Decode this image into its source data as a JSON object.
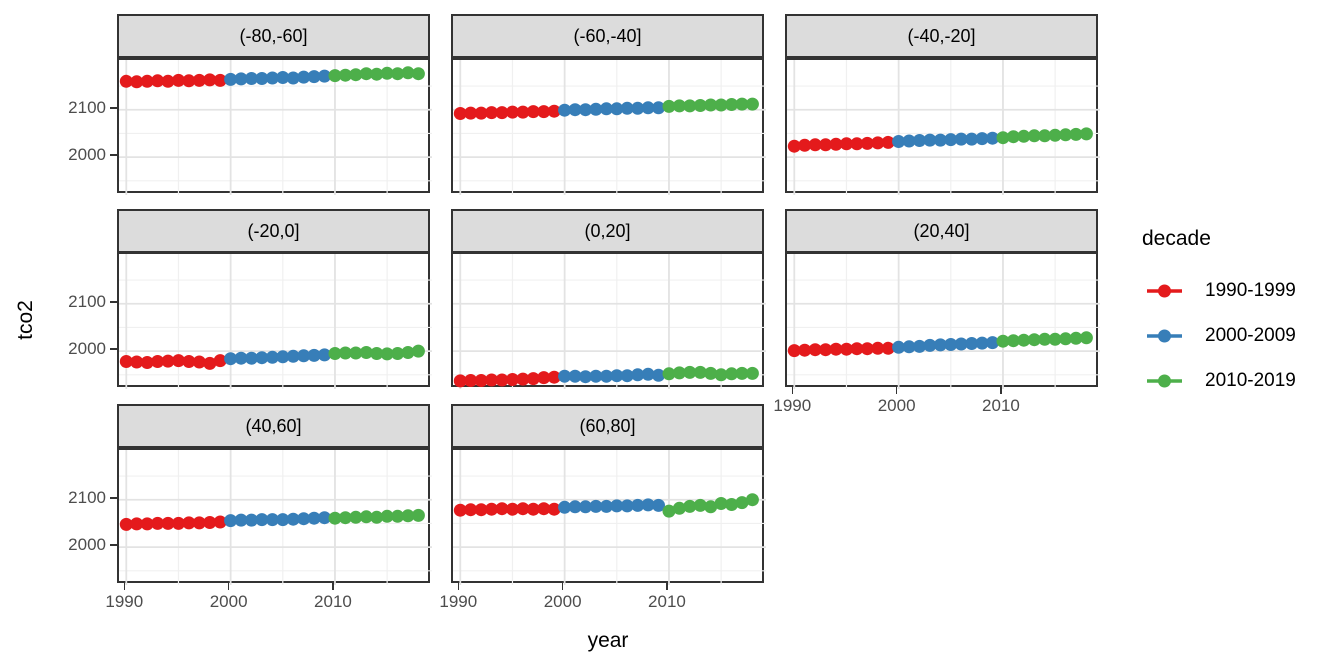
{
  "page": {
    "background": "#FFFFFF"
  },
  "y_axis": {
    "title": "tco2",
    "tick_labels": [
      "2100",
      "2000"
    ],
    "tick_values": [
      2100,
      2000
    ]
  },
  "x_axis": {
    "title": "year",
    "tick_labels": [
      "1990",
      "2000",
      "2010"
    ],
    "tick_values": [
      1990,
      2000,
      2010
    ]
  },
  "legend": {
    "title": "decade",
    "items": [
      {
        "label": "1990-1999",
        "color": "#E41A1C"
      },
      {
        "label": "2000-2009",
        "color": "#377EB8"
      },
      {
        "label": "2010-2019",
        "color": "#4DAF4A"
      }
    ]
  },
  "chart_data": {
    "type": "scatter",
    "title": "",
    "xlabel": "year",
    "ylabel": "tco2",
    "facet_by": "latitude band",
    "legend_position": "right",
    "grid": true,
    "xlim": [
      1989.3,
      2019.3
    ],
    "ylim": [
      1920,
      2205
    ],
    "x_major_gridlines": [
      1990,
      2000,
      2010
    ],
    "x_minor_gridlines": [
      1995,
      2005,
      2015
    ],
    "y_major_gridlines": [
      2000,
      2100
    ],
    "y_minor_gridlines": [
      1950,
      2050,
      2150
    ],
    "x": [
      1990,
      1991,
      1992,
      1993,
      1994,
      1995,
      1996,
      1997,
      1998,
      1999,
      2000,
      2001,
      2002,
      2003,
      2004,
      2005,
      2006,
      2007,
      2008,
      2009,
      2010,
      2011,
      2012,
      2013,
      2014,
      2015,
      2016,
      2017,
      2018
    ],
    "decades": [
      {
        "name": "1990-1999",
        "color": "#E41A1C",
        "from": 1990,
        "to": 1999
      },
      {
        "name": "2000-2009",
        "color": "#377EB8",
        "from": 2000,
        "to": 2009
      },
      {
        "name": "2010-2019",
        "color": "#4DAF4A",
        "from": 2010,
        "to": 2019
      }
    ],
    "facets": [
      {
        "label": "(-80,-60]",
        "tco2": [
          2160,
          2159,
          2160,
          2161,
          2160,
          2162,
          2161,
          2162,
          2163,
          2162,
          2164,
          2165,
          2166,
          2166,
          2167,
          2168,
          2167,
          2169,
          2170,
          2171,
          2172,
          2173,
          2174,
          2176,
          2175,
          2177,
          2176,
          2178,
          2176
        ]
      },
      {
        "label": "(-60,-40]",
        "tco2": [
          2092,
          2093,
          2093,
          2094,
          2094,
          2095,
          2095,
          2096,
          2096,
          2097,
          2099,
          2100,
          2100,
          2101,
          2102,
          2102,
          2103,
          2103,
          2104,
          2104,
          2107,
          2108,
          2108,
          2109,
          2110,
          2110,
          2111,
          2112,
          2112
        ]
      },
      {
        "label": "(-40,-20]",
        "tco2": [
          2023,
          2025,
          2026,
          2026,
          2027,
          2028,
          2028,
          2029,
          2030,
          2031,
          2033,
          2034,
          2035,
          2036,
          2036,
          2037,
          2038,
          2038,
          2039,
          2040,
          2041,
          2043,
          2044,
          2045,
          2045,
          2046,
          2047,
          2048,
          2049
        ]
      },
      {
        "label": "(-20,0]",
        "tco2": [
          1978,
          1977,
          1976,
          1978,
          1979,
          1980,
          1978,
          1977,
          1974,
          1980,
          1984,
          1985,
          1985,
          1986,
          1987,
          1988,
          1989,
          1990,
          1991,
          1992,
          1995,
          1996,
          1996,
          1997,
          1995,
          1994,
          1995,
          1997,
          2000
        ]
      },
      {
        "label": "(0,20]",
        "tco2": [
          1937,
          1938,
          1938,
          1939,
          1939,
          1940,
          1941,
          1942,
          1944,
          1945,
          1947,
          1947,
          1946,
          1947,
          1947,
          1948,
          1948,
          1950,
          1951,
          1949,
          1952,
          1954,
          1955,
          1955,
          1953,
          1950,
          1952,
          1953,
          1953
        ]
      },
      {
        "label": "(20,40]",
        "tco2": [
          2001,
          2002,
          2003,
          2003,
          2004,
          2004,
          2005,
          2005,
          2006,
          2006,
          2008,
          2009,
          2010,
          2012,
          2013,
          2014,
          2015,
          2016,
          2017,
          2018,
          2021,
          2022,
          2023,
          2024,
          2025,
          2025,
          2026,
          2027,
          2028
        ]
      },
      {
        "label": "(40,60]",
        "tco2": [
          2048,
          2049,
          2049,
          2050,
          2050,
          2050,
          2051,
          2051,
          2052,
          2053,
          2056,
          2057,
          2057,
          2058,
          2058,
          2058,
          2059,
          2060,
          2061,
          2062,
          2061,
          2062,
          2063,
          2064,
          2063,
          2065,
          2065,
          2066,
          2067
        ]
      },
      {
        "label": "(60,80]",
        "tco2": [
          2078,
          2079,
          2079,
          2080,
          2081,
          2080,
          2081,
          2080,
          2081,
          2080,
          2084,
          2085,
          2085,
          2086,
          2086,
          2087,
          2087,
          2088,
          2089,
          2088,
          2076,
          2082,
          2086,
          2088,
          2085,
          2092,
          2090,
          2094,
          2100
        ]
      }
    ]
  }
}
